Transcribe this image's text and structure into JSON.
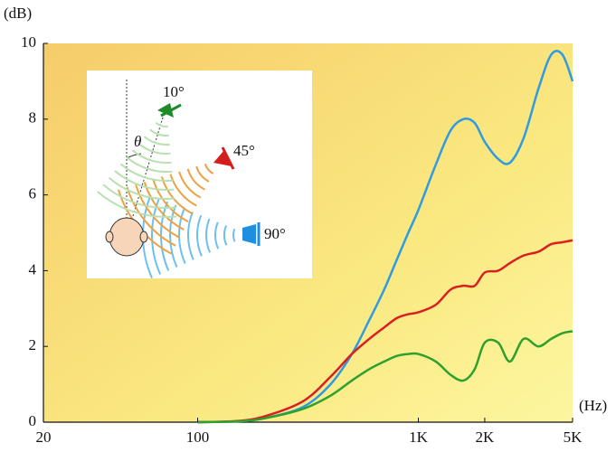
{
  "chart_data": {
    "type": "line",
    "y_label": "(dB)",
    "x_label": "(Hz)",
    "x": [
      100,
      150,
      200,
      300,
      400,
      500,
      600,
      700,
      800,
      900,
      1000,
      1200,
      1400,
      1600,
      1800,
      2000,
      2300,
      2600,
      3000,
      3500,
      4000,
      4500,
      5000
    ],
    "series": [
      {
        "color": "#2f9be0",
        "values": [
          0,
          0.02,
          0.1,
          0.4,
          1.0,
          1.8,
          2.7,
          3.5,
          4.3,
          5.0,
          5.6,
          6.8,
          7.7,
          8.0,
          7.9,
          7.4,
          6.95,
          6.85,
          7.5,
          8.8,
          9.7,
          9.7,
          9.0
        ]
      },
      {
        "color": "#d92020",
        "values": [
          0,
          0.03,
          0.15,
          0.55,
          1.2,
          1.8,
          2.2,
          2.5,
          2.75,
          2.85,
          2.9,
          3.1,
          3.5,
          3.6,
          3.6,
          3.95,
          4.0,
          4.2,
          4.4,
          4.5,
          4.7,
          4.75,
          4.8
        ]
      },
      {
        "color": "#2ea02e",
        "values": [
          0,
          0.02,
          0.1,
          0.35,
          0.7,
          1.1,
          1.4,
          1.6,
          1.75,
          1.8,
          1.8,
          1.6,
          1.25,
          1.1,
          1.4,
          2.1,
          2.1,
          1.6,
          2.2,
          2.0,
          2.2,
          2.35,
          2.4
        ]
      }
    ],
    "xscale": "log",
    "xlim": [
      20,
      5000
    ],
    "xticks": [
      20,
      100,
      {
        "value": 1000,
        "label": "1K"
      },
      {
        "value": 2000,
        "label": "2K"
      },
      {
        "value": 5000,
        "label": "5K"
      }
    ],
    "ylim": [
      0,
      10
    ],
    "yticks": [
      0,
      2,
      4,
      6,
      8,
      10
    ],
    "grid": false,
    "annotations": [
      "10°",
      "45°",
      "90°",
      "θ"
    ]
  }
}
